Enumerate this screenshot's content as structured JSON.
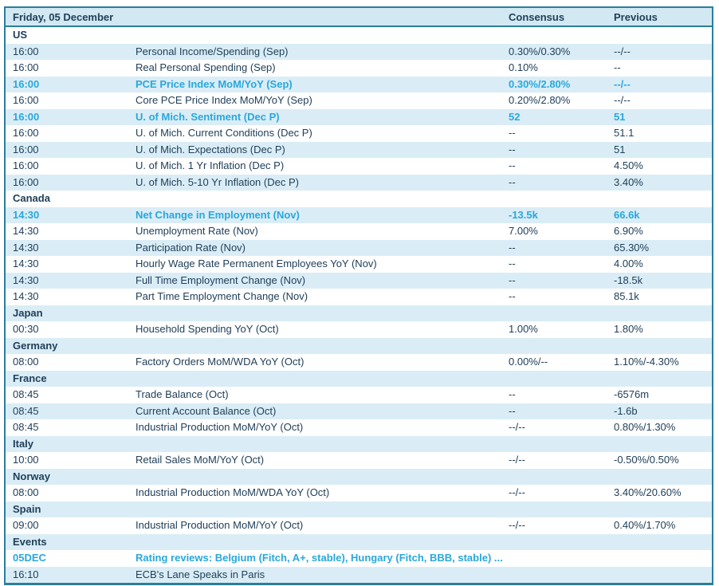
{
  "header": {
    "date": "Friday, 05 December",
    "consensus": "Consensus",
    "previous": "Previous"
  },
  "colors": {
    "border": "#2A7F9B",
    "header_bg": "#D2E8F2",
    "alt_row_bg": "#DAEDF6",
    "text_dark": "#21405A",
    "highlight": "#29A7DC"
  },
  "rows": [
    {
      "type": "section",
      "label": "US"
    },
    {
      "type": "event",
      "time": "16:00",
      "event": "Personal Income/Spending (Sep)",
      "consensus": "0.30%/0.30%",
      "previous": "--/--",
      "highlight": false
    },
    {
      "type": "event",
      "time": "16:00",
      "event": "Real Personal Spending (Sep)",
      "consensus": "0.10%",
      "previous": "--",
      "highlight": false
    },
    {
      "type": "event",
      "time": "16:00",
      "event": "PCE Price Index MoM/YoY (Sep)",
      "consensus": "0.30%/2.80%",
      "previous": "--/--",
      "highlight": true
    },
    {
      "type": "event",
      "time": "16:00",
      "event": "Core PCE Price Index MoM/YoY (Sep)",
      "consensus": "0.20%/2.80%",
      "previous": "--/--",
      "highlight": false
    },
    {
      "type": "event",
      "time": "16:00",
      "event": "U. of Mich. Sentiment (Dec P)",
      "consensus": "52",
      "previous": "51",
      "highlight": true
    },
    {
      "type": "event",
      "time": "16:00",
      "event": "U. of Mich. Current Conditions (Dec P)",
      "consensus": "--",
      "previous": "51.1",
      "highlight": false
    },
    {
      "type": "event",
      "time": "16:00",
      "event": "U. of Mich. Expectations (Dec P)",
      "consensus": "--",
      "previous": "51",
      "highlight": false
    },
    {
      "type": "event",
      "time": "16:00",
      "event": "U. of Mich. 1 Yr Inflation (Dec P)",
      "consensus": "--",
      "previous": "4.50%",
      "highlight": false
    },
    {
      "type": "event",
      "time": "16:00",
      "event": "U. of Mich. 5-10 Yr Inflation (Dec P)",
      "consensus": "--",
      "previous": "3.40%",
      "highlight": false
    },
    {
      "type": "section",
      "label": "Canada"
    },
    {
      "type": "event",
      "time": "14:30",
      "event": "Net Change in Employment (Nov)",
      "consensus": "-13.5k",
      "previous": "66.6k",
      "highlight": true
    },
    {
      "type": "event",
      "time": "14:30",
      "event": "Unemployment Rate (Nov)",
      "consensus": "7.00%",
      "previous": "6.90%",
      "highlight": false
    },
    {
      "type": "event",
      "time": "14:30",
      "event": "Participation Rate (Nov)",
      "consensus": "--",
      "previous": "65.30%",
      "highlight": false
    },
    {
      "type": "event",
      "time": "14:30",
      "event": "Hourly Wage Rate Permanent Employees YoY (Nov)",
      "consensus": "--",
      "previous": "4.00%",
      "highlight": false
    },
    {
      "type": "event",
      "time": "14:30",
      "event": "Full Time Employment Change (Nov)",
      "consensus": "--",
      "previous": "-18.5k",
      "highlight": false
    },
    {
      "type": "event",
      "time": "14:30",
      "event": "Part Time Employment Change (Nov)",
      "consensus": "--",
      "previous": "85.1k",
      "highlight": false
    },
    {
      "type": "section",
      "label": "Japan"
    },
    {
      "type": "event",
      "time": "00:30",
      "event": "Household Spending YoY (Oct)",
      "consensus": "1.00%",
      "previous": "1.80%",
      "highlight": false
    },
    {
      "type": "section",
      "label": "Germany"
    },
    {
      "type": "event",
      "time": "08:00",
      "event": "Factory Orders MoM/WDA YoY (Oct)",
      "consensus": "0.00%/--",
      "previous": "1.10%/-4.30%",
      "highlight": false
    },
    {
      "type": "section",
      "label": "France"
    },
    {
      "type": "event",
      "time": "08:45",
      "event": "Trade Balance (Oct)",
      "consensus": "--",
      "previous": "-6576m",
      "highlight": false
    },
    {
      "type": "event",
      "time": "08:45",
      "event": "Current Account Balance (Oct)",
      "consensus": "--",
      "previous": "-1.6b",
      "highlight": false
    },
    {
      "type": "event",
      "time": "08:45",
      "event": "Industrial Production MoM/YoY (Oct)",
      "consensus": "--/--",
      "previous": "0.80%/1.30%",
      "highlight": false
    },
    {
      "type": "section",
      "label": "Italy"
    },
    {
      "type": "event",
      "time": "10:00",
      "event": "Retail Sales MoM/YoY (Oct)",
      "consensus": "--/--",
      "previous": "-0.50%/0.50%",
      "highlight": false
    },
    {
      "type": "section",
      "label": "Norway"
    },
    {
      "type": "event",
      "time": "08:00",
      "event": "Industrial Production MoM/WDA YoY (Oct)",
      "consensus": "--/--",
      "previous": "3.40%/20.60%",
      "highlight": false
    },
    {
      "type": "section",
      "label": "Spain"
    },
    {
      "type": "event",
      "time": "09:00",
      "event": "Industrial Production MoM/YoY (Oct)",
      "consensus": "--/--",
      "previous": "0.40%/1.70%",
      "highlight": false
    },
    {
      "type": "section",
      "label": "Events"
    },
    {
      "type": "event",
      "time": "05DEC",
      "event": "Rating reviews: Belgium (Fitch, A+, stable), Hungary (Fitch, BBB, stable) ...",
      "consensus": "",
      "previous": "",
      "highlight": true
    },
    {
      "type": "event",
      "time": "16:10",
      "event": "ECB's Lane Speaks in Paris",
      "consensus": "",
      "previous": "",
      "highlight": false
    }
  ]
}
